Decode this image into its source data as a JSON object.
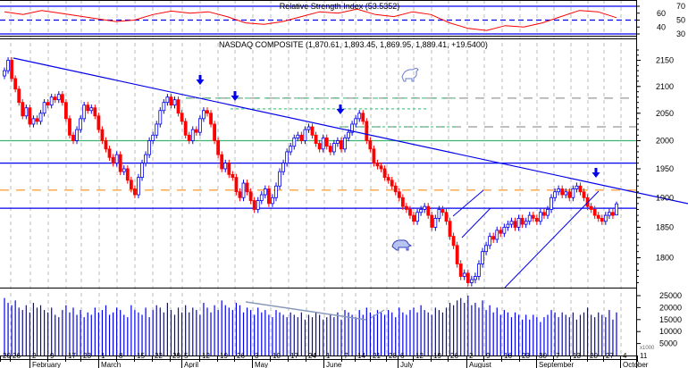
{
  "chart_data": {
    "type": "candlestick",
    "symbol_title": "NASDAQ COMPOSITE (1,870.61, 1,893.45, 1,869.95, 1,889.41, +19.5400)",
    "last": {
      "open": 1870.61,
      "high": 1893.45,
      "low": 1869.95,
      "close": 1889.41,
      "change": 19.54
    },
    "price_axis": {
      "ticks": [
        "2150",
        "2100",
        "2050",
        "2000",
        "1950",
        "1900",
        "1850",
        "1800"
      ],
      "range": [
        1750,
        2170
      ],
      "scale": "log"
    },
    "close": [
      2130,
      2150,
      2115,
      2095,
      2070,
      2045,
      2060,
      2030,
      2040,
      2035,
      2050,
      2070,
      2065,
      2080,
      2075,
      2085,
      2070,
      2040,
      2010,
      2000,
      2020,
      2040,
      2065,
      2055,
      2060,
      2045,
      2020,
      2000,
      1985,
      1970,
      1960,
      1975,
      1945,
      1950,
      1930,
      1915,
      1905,
      1935,
      1960,
      1975,
      2000,
      2010,
      2030,
      2055,
      2070,
      2080,
      2065,
      2075,
      2050,
      2035,
      2010,
      2000,
      2020,
      2015,
      2040,
      2055,
      2050,
      2030,
      2000,
      1975,
      1950,
      1960,
      1940,
      1935,
      1910,
      1900,
      1925,
      1910,
      1895,
      1880,
      1895,
      1905,
      1915,
      1890,
      1900,
      1920,
      1945,
      1960,
      1980,
      1990,
      2005,
      2010,
      2000,
      2020,
      2025,
      2010,
      1995,
      1985,
      2005,
      1990,
      1980,
      1995,
      2000,
      1985,
      2005,
      2015,
      2030,
      2040,
      2050,
      2035,
      2000,
      1985,
      1960,
      1955,
      1950,
      1935,
      1930,
      1920,
      1910,
      1900,
      1885,
      1880,
      1870,
      1860,
      1875,
      1880,
      1885,
      1870,
      1850,
      1865,
      1880,
      1875,
      1860,
      1835,
      1820,
      1790,
      1770,
      1775,
      1760,
      1765,
      1770,
      1790,
      1810,
      1820,
      1835,
      1830,
      1845,
      1840,
      1850,
      1855,
      1860,
      1850,
      1865,
      1855,
      1860,
      1870,
      1865,
      1860,
      1875,
      1870,
      1880,
      1900,
      1910,
      1915,
      1905,
      1910,
      1900,
      1915,
      1920,
      1910,
      1900,
      1885,
      1880,
      1870,
      1865,
      1860,
      1870,
      1875,
      1870,
      1889.41
    ],
    "first_open": 2120,
    "horizontal_levels": [
      {
        "price": 2000,
        "color": "#3cb371",
        "style": "solid"
      },
      {
        "price": 1960,
        "color": "#0000ee",
        "style": "solid"
      },
      {
        "price": 1882,
        "color": "#0000ee",
        "style": "solid"
      },
      {
        "price": 1913,
        "color": "#ffa040",
        "style": "dashed"
      },
      {
        "price": 2078,
        "color": "#999999",
        "style": "dashed"
      },
      {
        "price": 2025,
        "color": "#999999",
        "style": "dashed"
      }
    ],
    "colors": {
      "up": "#0000ee",
      "down": "#ff0000",
      "trend": "#0000ee"
    },
    "volume": {
      "axis_ticks": [
        "25000",
        "20000",
        "15000",
        "10000",
        "5000"
      ],
      "unit_label": "x1000",
      "values": [
        24,
        22,
        21,
        23,
        20,
        19,
        21,
        18,
        22,
        20,
        21,
        19,
        18,
        20,
        17,
        16,
        19,
        21,
        18,
        20,
        17,
        19,
        16,
        18,
        17,
        20,
        18,
        19,
        21,
        17,
        18,
        20,
        19,
        17,
        16,
        21,
        19,
        18,
        17,
        20,
        16,
        19,
        21,
        20,
        18,
        22,
        19,
        17,
        20,
        18,
        21,
        18,
        20,
        19,
        17,
        22,
        20,
        18,
        21,
        19,
        23,
        21,
        20,
        19,
        22,
        21,
        18,
        20,
        19,
        17,
        20,
        18,
        19,
        17,
        16,
        19,
        18,
        17,
        16,
        18,
        17,
        16,
        18,
        15,
        17,
        16,
        18,
        17,
        15,
        16,
        17,
        16,
        18,
        15,
        19,
        18,
        17,
        16,
        19,
        17,
        20,
        18,
        17,
        19,
        18,
        17,
        19,
        18,
        16,
        20,
        18,
        17,
        19,
        20,
        18,
        21,
        19,
        18,
        17,
        20,
        19,
        18,
        20,
        22,
        21,
        23,
        24,
        22,
        25,
        21,
        22,
        20,
        23,
        19,
        21,
        18,
        20,
        17,
        19,
        18,
        16,
        18,
        17,
        15,
        17,
        15,
        17,
        16,
        14,
        16,
        17,
        19,
        18,
        16,
        18,
        17,
        16,
        18,
        15,
        17,
        18,
        20,
        17,
        16,
        18,
        17,
        16,
        19,
        15,
        18
      ]
    },
    "rsi": {
      "title": "Relative Strength Index (53.5352)",
      "axis_ticks": [
        "70",
        "60",
        "50",
        "40",
        "30"
      ],
      "weekly_values": [
        62,
        58,
        64,
        60,
        56,
        52,
        48,
        50,
        58,
        63,
        60,
        62,
        55,
        46,
        44,
        48,
        55,
        62,
        60,
        66,
        58,
        55,
        62,
        58,
        46,
        38,
        35,
        42,
        40,
        46,
        55,
        64,
        62,
        53.54
      ],
      "levels": [
        70,
        50,
        30
      ]
    },
    "x_axis": {
      "day_ticks": [
        "20",
        "26",
        "2",
        "9",
        "17",
        "23",
        "1",
        "8",
        "15",
        "22",
        "29",
        "5",
        "12",
        "19",
        "26",
        "3",
        "10",
        "17",
        "24",
        "1",
        "7",
        "14",
        "21",
        "28",
        "6",
        "12",
        "19",
        "26",
        "2",
        "9",
        "16",
        "23",
        "30",
        "7",
        "13",
        "20",
        "27",
        "4",
        "11"
      ],
      "months": [
        "February",
        "March",
        "April",
        "May",
        "June",
        "July",
        "August",
        "September",
        "October"
      ]
    }
  }
}
